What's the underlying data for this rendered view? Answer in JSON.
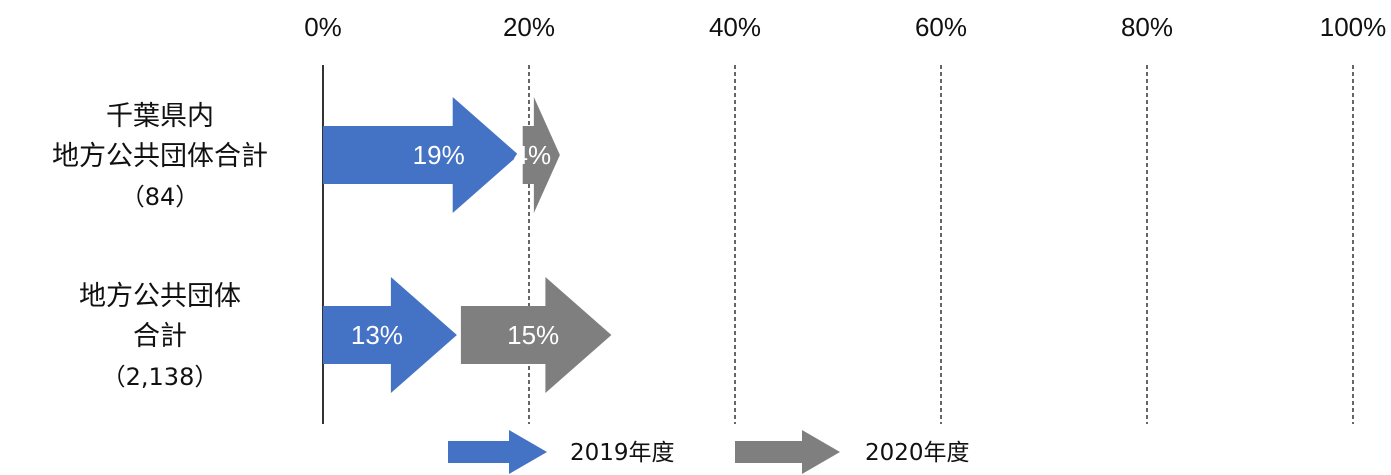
{
  "chart_data": {
    "type": "bar",
    "orientation": "horizontal",
    "stacked": true,
    "xlim": [
      0,
      100
    ],
    "x_ticks": [
      0,
      20,
      40,
      60,
      80,
      100
    ],
    "x_tick_labels": [
      "0%",
      "20%",
      "40%",
      "60%",
      "80%",
      "100%"
    ],
    "grid": "vertical dashed",
    "legend_position": "bottom",
    "categories": [
      {
        "lines": [
          "千葉県内",
          "地方公共団体合計"
        ],
        "count": "（84）"
      },
      {
        "lines": [
          "地方公共団体",
          "合計"
        ],
        "count": "（2,138）"
      }
    ],
    "series": [
      {
        "name": "2019年度",
        "values": [
          19,
          13
        ],
        "labels": [
          "19%",
          "13%"
        ]
      },
      {
        "name": "2020年度",
        "values": [
          4,
          15
        ],
        "labels": [
          "4%",
          "15%"
        ]
      }
    ],
    "colors": [
      "#4472C4",
      "#7F7F7F"
    ]
  }
}
